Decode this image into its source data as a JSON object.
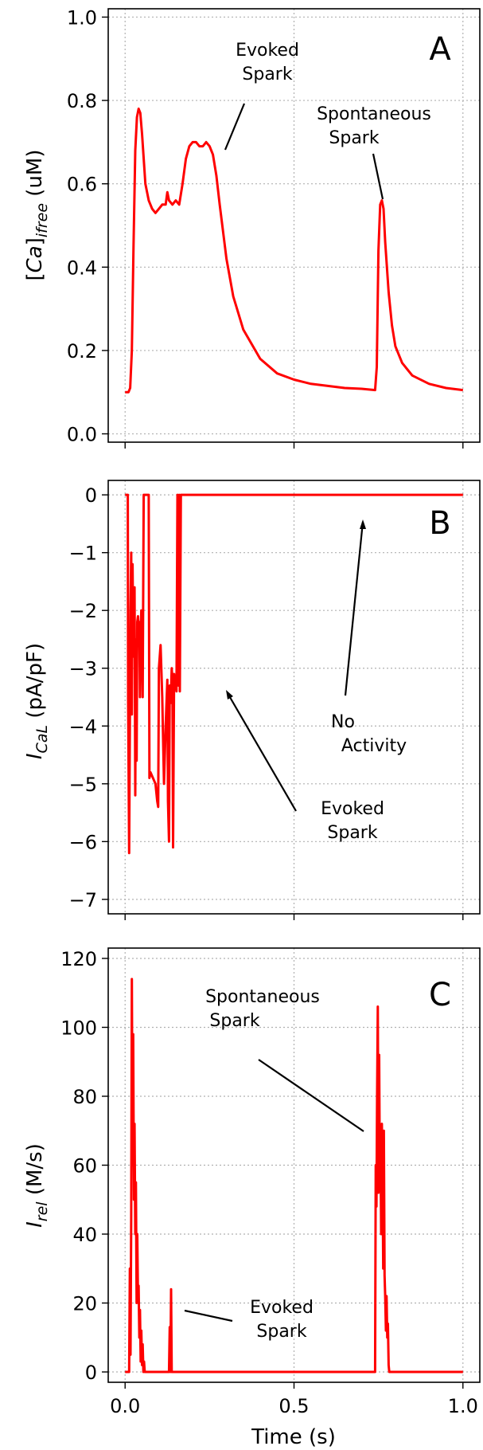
{
  "chart_data": [
    {
      "panel": "A",
      "type": "line",
      "ylabel": "[Ca]ifree (uM)",
      "xlabel": "",
      "xlim": [
        -0.05,
        1.05
      ],
      "ylim": [
        -0.02,
        1.02
      ],
      "xticks": [
        0.0,
        0.5,
        1.0
      ],
      "yticks": [
        0.0,
        0.2,
        0.4,
        0.6,
        0.8,
        1.0
      ],
      "ytick_labels": [
        "0.0",
        "0.2",
        "0.4",
        "0.6",
        "0.8",
        "1.0"
      ],
      "grid": true,
      "color": "#ff0000",
      "series": [
        {
          "x": [
            0.0,
            0.01,
            0.015,
            0.02,
            0.025,
            0.03,
            0.035,
            0.04,
            0.045,
            0.05,
            0.055,
            0.06,
            0.07,
            0.08,
            0.09,
            0.1,
            0.11,
            0.12,
            0.125,
            0.13,
            0.14,
            0.15,
            0.16,
            0.17,
            0.18,
            0.19,
            0.2,
            0.21,
            0.22,
            0.23,
            0.24,
            0.25,
            0.26,
            0.27,
            0.28,
            0.3,
            0.32,
            0.35,
            0.4,
            0.45,
            0.5,
            0.55,
            0.6,
            0.65,
            0.7,
            0.74,
            0.745,
            0.75,
            0.755,
            0.76,
            0.765,
            0.77,
            0.78,
            0.79,
            0.8,
            0.82,
            0.85,
            0.9,
            0.95,
            1.0
          ],
          "y": [
            0.1,
            0.1,
            0.11,
            0.2,
            0.45,
            0.68,
            0.76,
            0.78,
            0.77,
            0.72,
            0.66,
            0.6,
            0.56,
            0.54,
            0.53,
            0.54,
            0.55,
            0.55,
            0.58,
            0.56,
            0.55,
            0.56,
            0.55,
            0.6,
            0.66,
            0.69,
            0.7,
            0.7,
            0.69,
            0.69,
            0.7,
            0.69,
            0.67,
            0.62,
            0.55,
            0.42,
            0.33,
            0.25,
            0.18,
            0.145,
            0.13,
            0.12,
            0.115,
            0.11,
            0.108,
            0.105,
            0.16,
            0.44,
            0.55,
            0.56,
            0.54,
            0.46,
            0.34,
            0.26,
            0.21,
            0.17,
            0.14,
            0.12,
            0.11,
            0.105
          ]
        }
      ],
      "annotations": [
        {
          "text_lines": [
            "Evoked",
            "Spark"
          ]
        },
        {
          "text_lines": [
            "Spontaneous",
            "Spark"
          ]
        }
      ]
    },
    {
      "panel": "B",
      "type": "line",
      "ylabel": "ICaL (pA/pF)",
      "xlabel": "",
      "xlim": [
        -0.05,
        1.05
      ],
      "ylim": [
        -7.25,
        0.25
      ],
      "xticks": [
        0.0,
        0.5,
        1.0
      ],
      "yticks": [
        -7,
        -6,
        -5,
        -4,
        -3,
        -2,
        -1,
        0
      ],
      "ytick_labels": [
        "−7",
        "−6",
        "−5",
        "−4",
        "−3",
        "−2",
        "−1",
        "0"
      ],
      "grid": true,
      "color": "#ff0000",
      "series": [
        {
          "x": [
            0.0,
            0.008,
            0.009,
            0.012,
            0.014,
            0.016,
            0.018,
            0.02,
            0.022,
            0.024,
            0.026,
            0.028,
            0.03,
            0.032,
            0.034,
            0.036,
            0.038,
            0.04,
            0.042,
            0.044,
            0.046,
            0.048,
            0.05,
            0.052,
            0.055,
            0.058,
            0.06,
            0.062,
            0.065,
            0.07,
            0.072,
            0.075,
            0.09,
            0.095,
            0.098,
            0.1,
            0.105,
            0.11,
            0.115,
            0.12,
            0.125,
            0.127,
            0.13,
            0.132,
            0.135,
            0.138,
            0.14,
            0.142,
            0.145,
            0.148,
            0.15,
            0.152,
            0.155,
            0.158,
            0.16,
            0.162,
            0.165,
            0.168,
            0.17,
            0.175,
            1.0
          ],
          "y": [
            0.0,
            0.0,
            -3.5,
            -6.2,
            -4.0,
            -2.0,
            -1.0,
            -3.8,
            -1.2,
            -2.5,
            -2.8,
            -1.6,
            -5.2,
            -2.5,
            -4.6,
            -2.2,
            -2.1,
            -2.3,
            -2.2,
            -3.5,
            -2.4,
            -2.0,
            -2.2,
            -3.5,
            0.0,
            0.0,
            0.0,
            0.0,
            0.0,
            0.0,
            -4.9,
            -4.8,
            -5.0,
            -5.3,
            -5.4,
            -3.0,
            -2.6,
            -3.5,
            -5.0,
            -4.0,
            -3.2,
            -5.3,
            -6.0,
            -3.3,
            -3.6,
            -3.0,
            -3.2,
            -6.1,
            -3.1,
            -3.3,
            -3.2,
            -3.4,
            0.0,
            -3.3,
            0.0,
            -3.4,
            0.0,
            0.0,
            0.0,
            0.0,
            0.0
          ]
        }
      ],
      "annotations": [
        {
          "text_lines": [
            "No",
            "Activity"
          ]
        },
        {
          "text_lines": [
            "Evoked",
            "Spark"
          ]
        }
      ]
    },
    {
      "panel": "C",
      "type": "line",
      "ylabel": "Irel (M/s)",
      "xlabel": "Time (s)",
      "xlim": [
        -0.05,
        1.05
      ],
      "ylim": [
        -3,
        123
      ],
      "xticks": [
        0.0,
        0.5,
        1.0
      ],
      "xtick_labels": [
        "0.0",
        "0.5",
        "1.0"
      ],
      "yticks": [
        0,
        20,
        40,
        60,
        80,
        100,
        120
      ],
      "ytick_labels": [
        "0",
        "20",
        "40",
        "60",
        "80",
        "100",
        "120"
      ],
      "grid": true,
      "color": "#ff0000",
      "series": [
        {
          "x": [
            0.0,
            0.012,
            0.014,
            0.016,
            0.018,
            0.02,
            0.022,
            0.024,
            0.026,
            0.028,
            0.03,
            0.032,
            0.034,
            0.036,
            0.038,
            0.04,
            0.042,
            0.044,
            0.046,
            0.048,
            0.05,
            0.052,
            0.054,
            0.056,
            0.058,
            0.06,
            0.13,
            0.132,
            0.134,
            0.136,
            0.138,
            0.14,
            0.74,
            0.742,
            0.744,
            0.746,
            0.748,
            0.75,
            0.752,
            0.754,
            0.756,
            0.758,
            0.76,
            0.762,
            0.764,
            0.766,
            0.768,
            0.77,
            0.772,
            0.774,
            0.776,
            0.778,
            0.78,
            0.782,
            1.0
          ],
          "y": [
            0.0,
            0.0,
            30,
            5,
            45,
            114,
            60,
            98,
            50,
            72,
            40,
            55,
            20,
            40,
            22,
            25,
            10,
            18,
            3,
            12,
            2,
            8,
            0,
            3,
            0,
            0,
            0,
            13,
            0,
            24,
            0,
            0,
            0,
            60,
            48,
            80,
            106,
            52,
            92,
            58,
            66,
            40,
            72,
            60,
            30,
            70,
            28,
            22,
            12,
            22,
            10,
            14,
            2,
            0,
            0
          ]
        }
      ],
      "annotations": [
        {
          "text_lines": [
            "Spontaneous",
            "Spark"
          ]
        },
        {
          "text_lines": [
            "Evoked",
            "Spark"
          ]
        }
      ]
    }
  ]
}
